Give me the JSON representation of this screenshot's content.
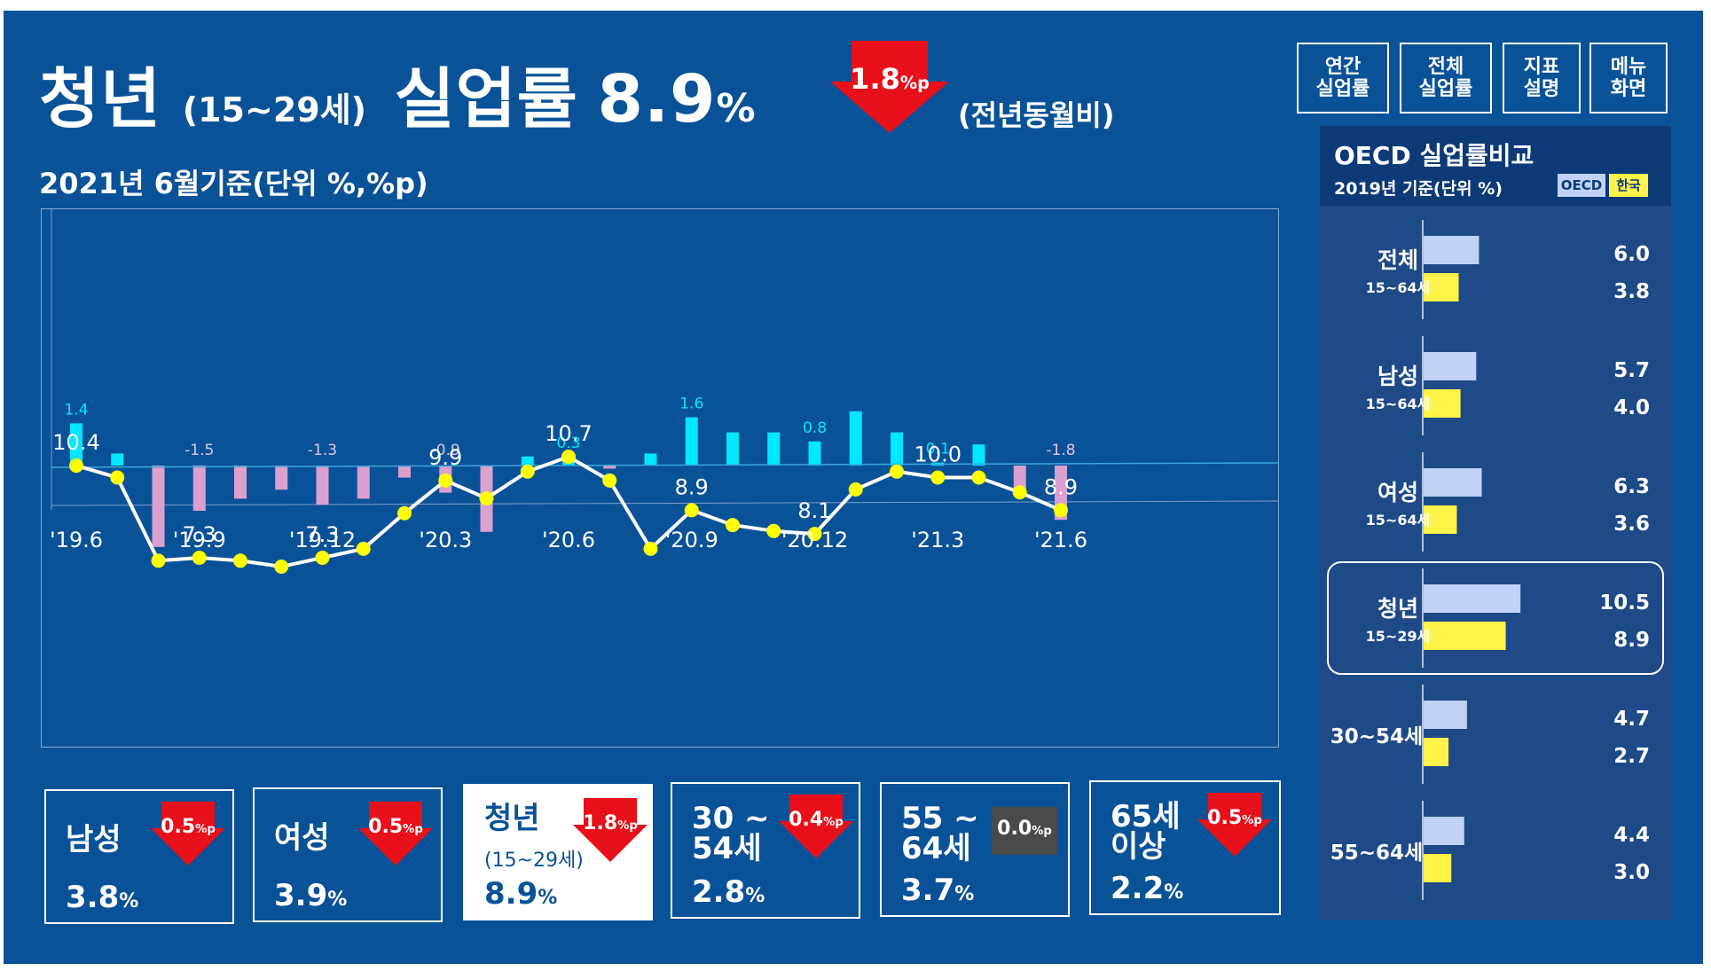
{
  "header": {
    "title_main": "청년",
    "title_age": "(15~29세)",
    "title_metric": "실업률",
    "title_value": "8.9",
    "title_unit": "%",
    "change_value": "1.8",
    "change_unit": "%p",
    "change_direction": "down",
    "change_label": "(전년동월비)",
    "subtitle": "2021년 6월기준(단위 %,%p)"
  },
  "nav": [
    {
      "label": "연간\n실업률"
    },
    {
      "label": "전체\n실업률"
    },
    {
      "label": "지표\n설명"
    },
    {
      "label": "메뉴\n화면"
    }
  ],
  "chart_data": {
    "type": "line",
    "categories": [
      "'19.6",
      "",
      "",
      "'19.9",
      "",
      "",
      "'19.12",
      "",
      "",
      "'20.3",
      "",
      "",
      "'20.6",
      "",
      "",
      "'20.9",
      "",
      "",
      "'20.12",
      "",
      "",
      "'21.3",
      "",
      "",
      "'21.6"
    ],
    "series": [
      {
        "type": "line",
        "values": [
          10.4,
          10.0,
          7.2,
          7.3,
          7.2,
          7.0,
          7.3,
          7.6,
          8.8,
          9.9,
          9.3,
          10.2,
          10.7,
          9.9,
          7.6,
          8.9,
          8.4,
          8.2,
          8.1,
          9.6,
          10.2,
          10.0,
          10.0,
          9.5,
          8.9
        ],
        "labels": [
          "10.4",
          "",
          "",
          "7.3",
          "",
          "",
          "7.3",
          "",
          "",
          "9.9",
          "",
          "",
          "10.7",
          "",
          "",
          "8.9",
          "",
          "",
          "8.1",
          "",
          "",
          "10.0",
          "",
          "",
          "8.9"
        ],
        "color": "#ffff00"
      },
      {
        "type": "bar",
        "values": [
          1.4,
          0.4,
          -2.7,
          -1.5,
          -1.1,
          -0.8,
          -1.3,
          -1.1,
          -0.4,
          -0.9,
          -2.2,
          0.3,
          0.3,
          -0.1,
          0.4,
          1.6,
          1.1,
          1.1,
          0.8,
          1.8,
          1.1,
          0.1,
          0.7,
          -0.9,
          -1.8
        ],
        "labels": [
          "1.4",
          "",
          "",
          "-1.5",
          "",
          "",
          "-1.3",
          "",
          "",
          "-0.9",
          "",
          "",
          "0.3",
          "",
          "",
          "1.6",
          "",
          "",
          "0.8",
          "",
          "",
          "0.1",
          "",
          "",
          "-1.8"
        ],
        "pos_color": "#00e8ff",
        "neg_color": "#d9a0d0"
      }
    ]
  },
  "cards": [
    {
      "label": "남성",
      "sub": "",
      "value": "3.8",
      "unit": "%",
      "change": "0.5",
      "change_unit": "%p",
      "direction": "down",
      "active": false
    },
    {
      "label": "여성",
      "sub": "",
      "value": "3.9",
      "unit": "%",
      "change": "0.5",
      "change_unit": "%p",
      "direction": "down",
      "active": false
    },
    {
      "label": "청년",
      "sub": "(15~29세)",
      "value": "8.9",
      "unit": "%",
      "change": "1.8",
      "change_unit": "%p",
      "direction": "down",
      "active": true
    },
    {
      "label": "30 ~\n54세",
      "sub": "",
      "value": "2.8",
      "unit": "%",
      "change": "0.4",
      "change_unit": "%p",
      "direction": "down",
      "active": false
    },
    {
      "label": "55 ~\n64세",
      "sub": "",
      "value": "3.7",
      "unit": "%",
      "change": "0.0",
      "change_unit": "%p",
      "direction": "flat",
      "active": false
    },
    {
      "label": "65세\n이상",
      "sub": "",
      "value": "2.2",
      "unit": "%",
      "change": "0.5",
      "change_unit": "%p",
      "direction": "down",
      "active": false
    }
  ],
  "oecd": {
    "title": "OECD 실업률비교",
    "subtitle": "2019년 기준(단위 %)",
    "legend_oecd": "OECD",
    "legend_korea": "한국",
    "colors": {
      "oecd": "#c0d2f5",
      "korea": "#fff34a"
    },
    "groups": [
      {
        "label": "전체",
        "age": "15~64세",
        "oecd": 6.0,
        "korea": 3.8,
        "oecd_label": "6.0",
        "korea_label": "3.8"
      },
      {
        "label": "남성",
        "age": "15~64세",
        "oecd": 5.7,
        "korea": 4.0,
        "oecd_label": "5.7",
        "korea_label": "4.0"
      },
      {
        "label": "여성",
        "age": "15~64세",
        "oecd": 6.3,
        "korea": 3.6,
        "oecd_label": "6.3",
        "korea_label": "3.6"
      },
      {
        "label": "청년",
        "age": "15~29세",
        "oecd": 10.5,
        "korea": 8.9,
        "oecd_label": "10.5",
        "korea_label": "8.9",
        "highlight": true
      },
      {
        "label": "30~54세",
        "age": "",
        "oecd": 4.7,
        "korea": 2.7,
        "oecd_label": "4.7",
        "korea_label": "2.7"
      },
      {
        "label": "55~64세",
        "age": "",
        "oecd": 4.4,
        "korea": 3.0,
        "oecd_label": "4.4",
        "korea_label": "3.0"
      }
    ]
  }
}
